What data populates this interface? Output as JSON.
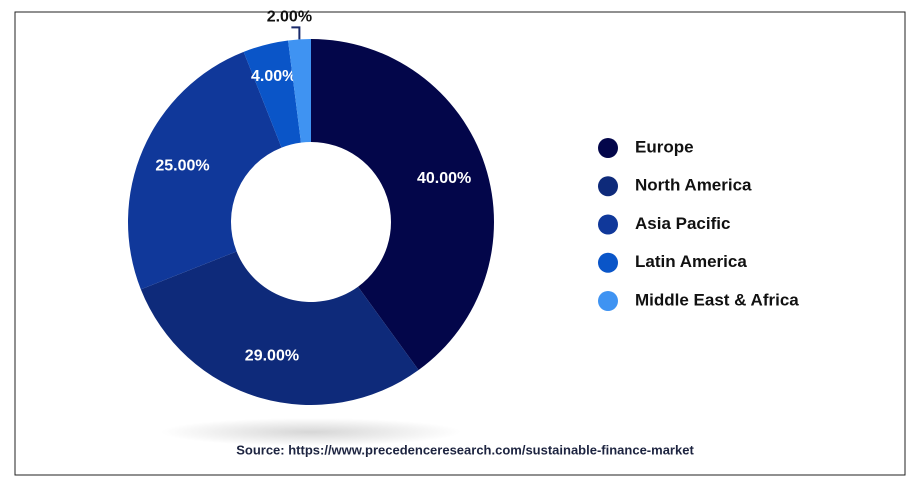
{
  "chart_data": {
    "type": "donut",
    "categories": [
      "Europe",
      "North America",
      "Asia Pacific",
      "Latin America",
      "Middle East & Africa"
    ],
    "values": [
      40,
      29,
      25,
      4,
      2
    ],
    "value_labels": [
      "40.00%",
      "29.00%",
      "25.00%",
      "4.00%",
      "2.00%"
    ],
    "colors": [
      "#03064a",
      "#0e2a7a",
      "#10389a",
      "#0a55c8",
      "#3f93f2"
    ],
    "source": "Source: https://www.precedenceresearch.com/sustainable-finance-market"
  }
}
